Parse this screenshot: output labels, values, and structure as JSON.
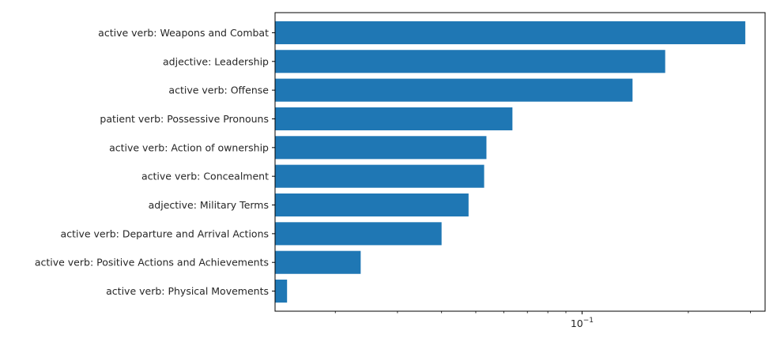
{
  "chart_data": {
    "type": "bar",
    "orientation": "horizontal",
    "title": "",
    "xlabel": "",
    "ylabel": "",
    "x_scale": "log",
    "xlim": [
      0.0135,
      0.33
    ],
    "grid": false,
    "bar_color": "#1f77b4",
    "axis_color": "#000000",
    "categories": [
      "active verb: Weapons and Combat",
      "adjective: Leadership",
      "active verb: Offense",
      "patient verb: Possessive Pronouns",
      "active verb: Action of ownership",
      "active verb: Concealment",
      "adjective: Military Terms",
      "active verb: Departure and Arrival Actions",
      "active verb: Positive Actions and Achievements",
      "active verb: Physical Movements"
    ],
    "values": [
      0.29,
      0.172,
      0.139,
      0.0635,
      0.0536,
      0.0528,
      0.0477,
      0.04,
      0.0236,
      0.0146
    ],
    "x_major_ticks": [
      {
        "value": 0.1,
        "base": "10",
        "exp": "−1"
      }
    ],
    "x_minor_ticks": [
      0.02,
      0.03,
      0.04,
      0.05,
      0.06,
      0.07,
      0.08,
      0.09,
      0.2,
      0.3
    ]
  }
}
